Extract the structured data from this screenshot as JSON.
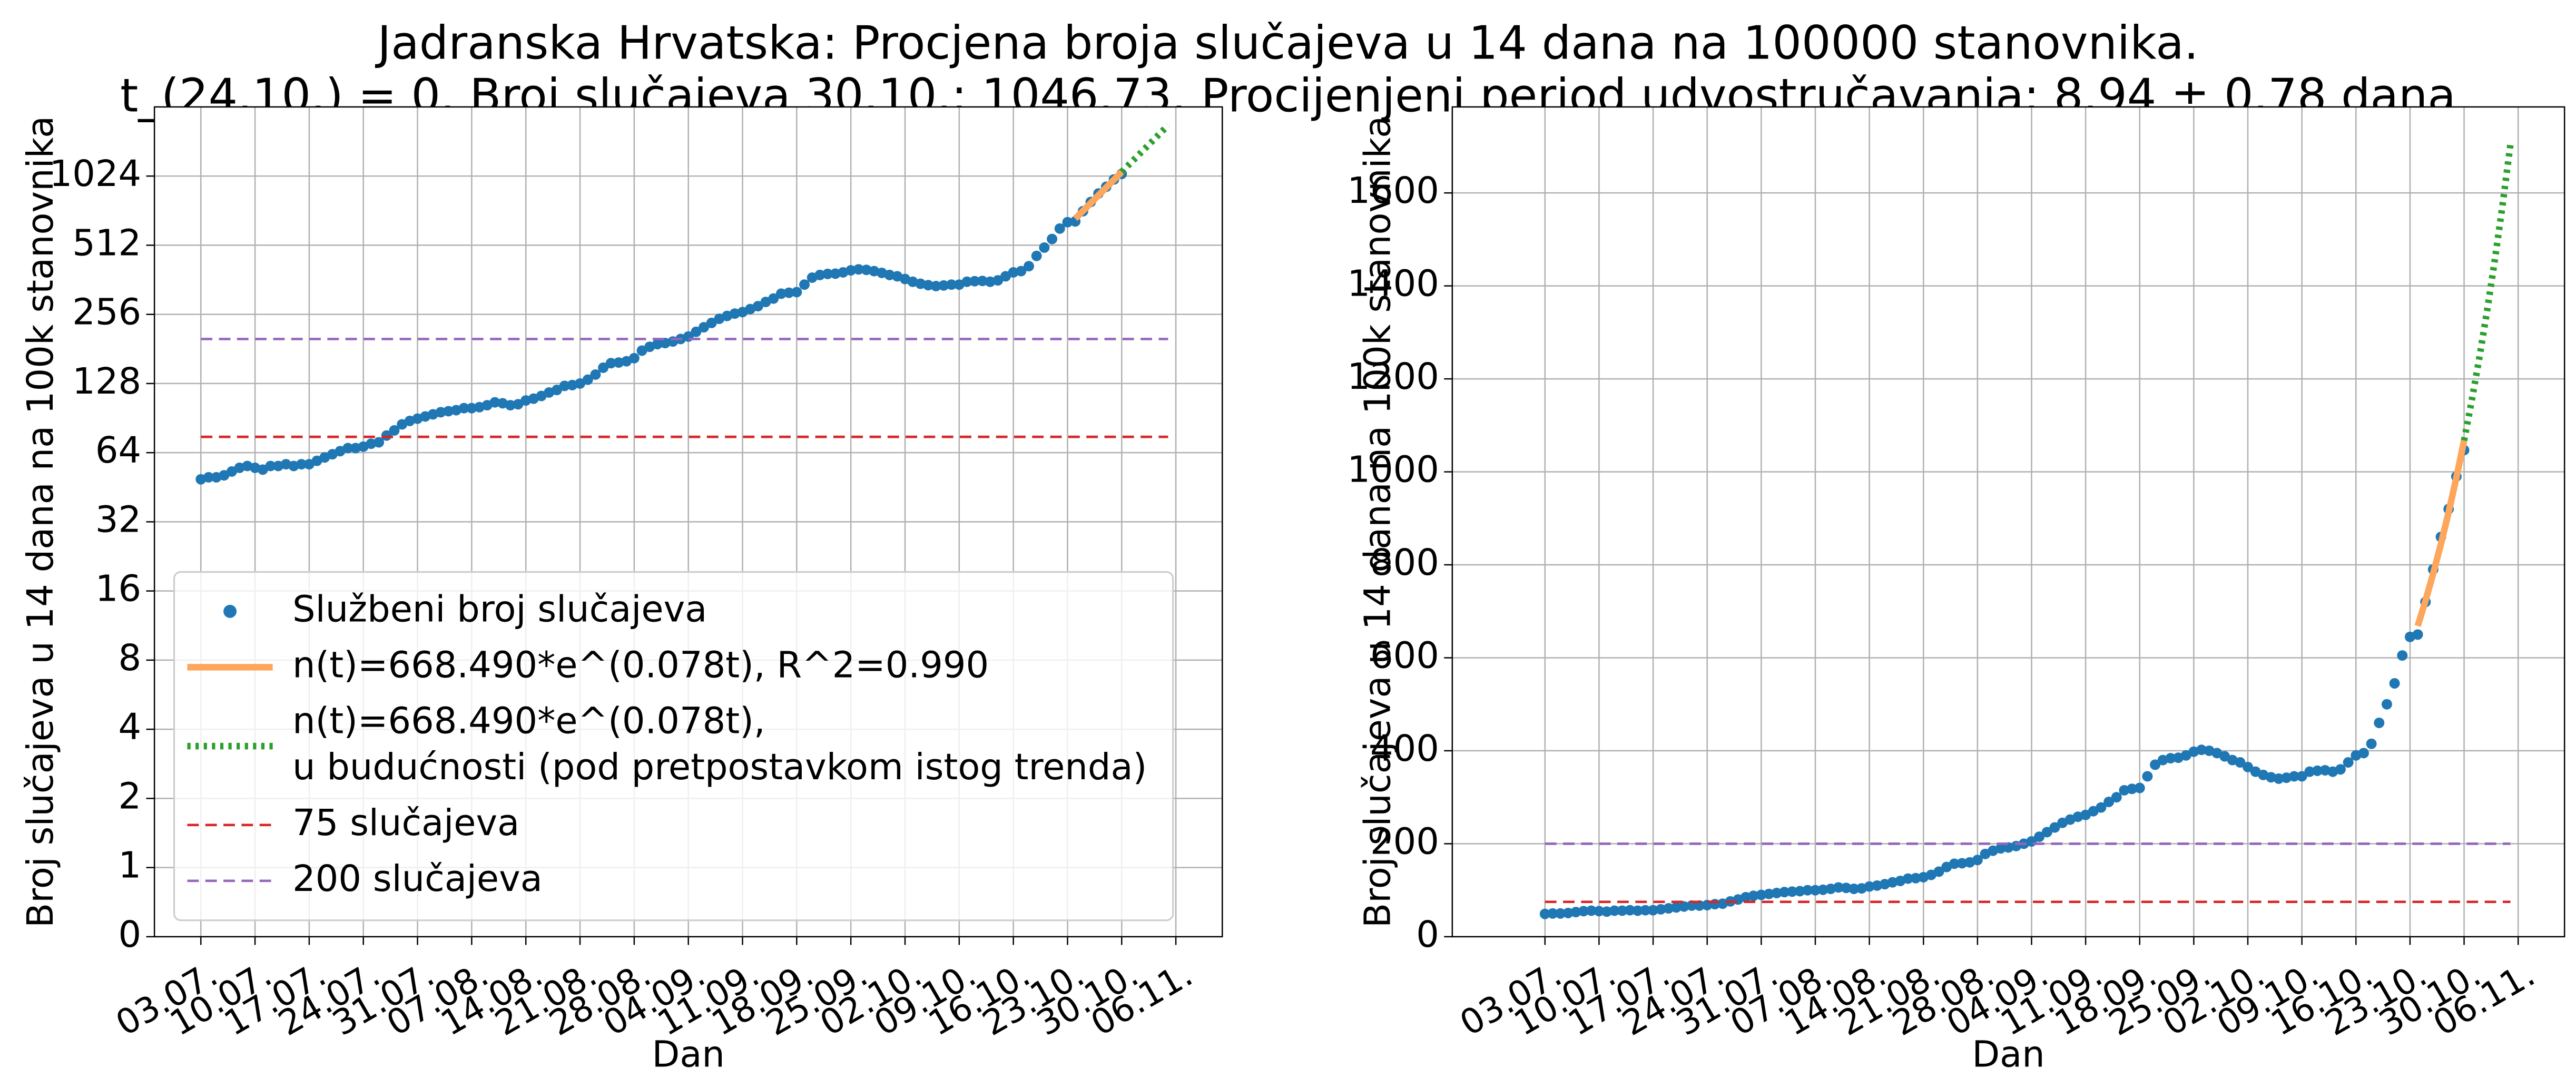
{
  "title": [
    "Jadranska Hrvatska: Procjena broja slučajeva u 14 dana na 100000 stanovnika.",
    "t_(24.10.) = 0. Broj slučajeva 30.10.: 1046.73. Procijenjeni period udvostručavanja: 8.94 ± 0.78 dana"
  ],
  "chart_data": [
    {
      "type": "scatter",
      "xlabel": "Dan",
      "ylabel": "Broj slučajeva u 14 dana na 100k stanovnika",
      "yscale": "symlog",
      "base": 2,
      "linthresh": 1,
      "ylim": [
        0,
        2048
      ],
      "yticks": [
        0,
        1,
        2,
        4,
        8,
        16,
        32,
        64,
        128,
        256,
        512,
        1024
      ],
      "xlim": [
        "27.06.",
        "12.11."
      ],
      "xticks": [
        "03.07.",
        "10.07.",
        "17.07.",
        "24.07.",
        "31.07.",
        "07.08.",
        "14.08.",
        "21.08.",
        "28.08.",
        "04.09.",
        "11.09.",
        "18.09.",
        "25.09.",
        "02.10.",
        "09.10.",
        "16.10.",
        "23.10.",
        "30.10.",
        "06.11."
      ],
      "grid": true,
      "legend": "lower left",
      "series": [
        {
          "name": [
            "Službeni broj slučajeva"
          ],
          "color": "#1f77b4",
          "marker": "o",
          "x": [
            "03.07.",
            "04.07.",
            "05.07.",
            "06.07.",
            "07.07.",
            "08.07.",
            "09.07.",
            "10.07.",
            "11.07.",
            "12.07.",
            "13.07.",
            "14.07.",
            "15.07.",
            "16.07.",
            "17.07.",
            "18.07.",
            "19.07.",
            "20.07.",
            "21.07.",
            "22.07.",
            "23.07.",
            "24.07.",
            "25.07.",
            "26.07.",
            "27.07.",
            "28.07.",
            "29.07.",
            "30.07.",
            "31.07.",
            "01.08.",
            "02.08.",
            "03.08.",
            "04.08.",
            "05.08.",
            "06.08.",
            "07.08.",
            "08.08.",
            "09.08.",
            "10.08.",
            "11.08.",
            "12.08.",
            "13.08.",
            "14.08.",
            "15.08.",
            "16.08.",
            "17.08.",
            "18.08.",
            "19.08.",
            "20.08.",
            "21.08.",
            "22.08.",
            "23.08.",
            "24.08.",
            "25.08.",
            "26.08.",
            "27.08.",
            "28.08.",
            "29.08.",
            "30.08.",
            "31.08.",
            "01.09.",
            "02.09.",
            "03.09.",
            "04.09.",
            "05.09.",
            "06.09.",
            "07.09.",
            "08.09.",
            "09.09.",
            "10.09.",
            "11.09.",
            "12.09.",
            "13.09.",
            "14.09.",
            "15.09.",
            "16.09.",
            "17.09.",
            "18.09.",
            "19.09.",
            "20.09.",
            "21.09.",
            "22.09.",
            "23.09.",
            "24.09.",
            "25.09.",
            "26.09.",
            "27.09.",
            "28.09.",
            "29.09.",
            "30.09.",
            "01.10.",
            "02.10.",
            "03.10.",
            "04.10.",
            "05.10.",
            "06.10.",
            "07.10.",
            "08.10.",
            "09.10.",
            "10.10.",
            "11.10.",
            "12.10.",
            "13.10.",
            "14.10.",
            "15.10.",
            "16.10.",
            "17.10.",
            "18.10.",
            "19.10.",
            "20.10.",
            "21.10.",
            "22.10.",
            "23.10.",
            "24.10.",
            "25.10.",
            "26.10.",
            "27.10.",
            "28.10.",
            "29.10.",
            "30.10."
          ],
          "values": [
            49,
            50,
            50,
            51,
            53,
            55,
            56,
            55,
            54,
            56,
            56,
            57,
            56,
            57,
            57,
            59,
            61,
            63,
            65,
            67,
            67,
            68,
            70,
            71,
            76,
            80,
            85,
            88,
            90,
            92,
            94,
            96,
            97,
            98,
            100,
            100,
            101,
            103,
            106,
            105,
            103,
            104,
            108,
            110,
            113,
            117,
            120,
            125,
            126,
            128,
            133,
            140,
            150,
            157,
            158,
            160,
            165,
            178,
            185,
            190,
            192,
            195,
            200,
            205,
            215,
            225,
            235,
            245,
            252,
            258,
            262,
            270,
            278,
            290,
            300,
            315,
            318,
            320,
            345,
            370,
            380,
            384,
            385,
            390,
            398,
            402,
            400,
            395,
            388,
            380,
            375,
            365,
            355,
            348,
            343,
            340,
            342,
            345,
            345,
            355,
            357,
            358,
            355,
            360,
            375,
            390,
            395,
            415,
            460,
            500,
            545,
            605,
            645,
            650,
            720,
            790,
            860,
            920,
            990,
            1046.73
          ]
        },
        {
          "name": [
            "n(t)=668.490*e^(0.078t), R^2=0.990"
          ],
          "color": "#fda65c",
          "linestyle": "solid",
          "linewidth": 4,
          "x": [
            "24.10.",
            "25.10.",
            "26.10.",
            "27.10.",
            "28.10.",
            "29.10.",
            "30.10."
          ],
          "values": [
            668.49,
            722.7,
            781.3,
            844.7,
            913.2,
            987.3,
            1067.4
          ]
        },
        {
          "name": [
            "n(t)=668.490*e^(0.078t),",
            "u budućnosti (pod pretpostavkom istog trenda)"
          ],
          "color": "#2ca02c",
          "linestyle": "dotted",
          "linewidth": 4,
          "x": [
            "30.10.",
            "31.10.",
            "01.11.",
            "02.11.",
            "03.11.",
            "04.11.",
            "05.11."
          ],
          "values": [
            1067.4,
            1154,
            1247.7,
            1348.9,
            1458.3,
            1576.6,
            1704.5
          ]
        },
        {
          "name": [
            "75 slučajeva"
          ],
          "color": "#d62728",
          "linestyle": "dashed",
          "linewidth": 1.5,
          "x": [
            "03.07.",
            "05.11."
          ],
          "values": [
            75,
            75
          ]
        },
        {
          "name": [
            "200 slučajeva"
          ],
          "color": "#9467bd",
          "linestyle": "dashed",
          "linewidth": 1.5,
          "x": [
            "03.07.",
            "05.11."
          ],
          "values": [
            200,
            200
          ]
        }
      ]
    },
    {
      "type": "scatter",
      "xlabel": "Dan",
      "ylabel": "Broj slučajeva u 14 dana na 100k stanovnika",
      "yscale": "linear",
      "ylim": [
        0,
        1785
      ],
      "yticks": [
        0,
        200,
        400,
        600,
        800,
        1000,
        1200,
        1400,
        1600
      ],
      "xlim": [
        "21.06.",
        "12.11."
      ],
      "xticks": [
        "03.07.",
        "10.07.",
        "17.07.",
        "24.07.",
        "31.07.",
        "07.08.",
        "14.08.",
        "21.08.",
        "28.08.",
        "04.09.",
        "11.09.",
        "18.09.",
        "25.09.",
        "02.10.",
        "09.10.",
        "16.10.",
        "23.10.",
        "30.10.",
        "06.11."
      ],
      "grid": true,
      "series": [
        {
          "color": "#1f77b4",
          "marker": "o",
          "x": [
            "03.07.",
            "04.07.",
            "05.07.",
            "06.07.",
            "07.07.",
            "08.07.",
            "09.07.",
            "10.07.",
            "11.07.",
            "12.07.",
            "13.07.",
            "14.07.",
            "15.07.",
            "16.07.",
            "17.07.",
            "18.07.",
            "19.07.",
            "20.07.",
            "21.07.",
            "22.07.",
            "23.07.",
            "24.07.",
            "25.07.",
            "26.07.",
            "27.07.",
            "28.07.",
            "29.07.",
            "30.07.",
            "31.07.",
            "01.08.",
            "02.08.",
            "03.08.",
            "04.08.",
            "05.08.",
            "06.08.",
            "07.08.",
            "08.08.",
            "09.08.",
            "10.08.",
            "11.08.",
            "12.08.",
            "13.08.",
            "14.08.",
            "15.08.",
            "16.08.",
            "17.08.",
            "18.08.",
            "19.08.",
            "20.08.",
            "21.08.",
            "22.08.",
            "23.08.",
            "24.08.",
            "25.08.",
            "26.08.",
            "27.08.",
            "28.08.",
            "29.08.",
            "30.08.",
            "31.08.",
            "01.09.",
            "02.09.",
            "03.09.",
            "04.09.",
            "05.09.",
            "06.09.",
            "07.09.",
            "08.09.",
            "09.09.",
            "10.09.",
            "11.09.",
            "12.09.",
            "13.09.",
            "14.09.",
            "15.09.",
            "16.09.",
            "17.09.",
            "18.09.",
            "19.09.",
            "20.09.",
            "21.09.",
            "22.09.",
            "23.09.",
            "24.09.",
            "25.09.",
            "26.09.",
            "27.09.",
            "28.09.",
            "29.09.",
            "30.09.",
            "01.10.",
            "02.10.",
            "03.10.",
            "04.10.",
            "05.10.",
            "06.10.",
            "07.10.",
            "08.10.",
            "09.10.",
            "10.10.",
            "11.10.",
            "12.10.",
            "13.10.",
            "14.10.",
            "15.10.",
            "16.10.",
            "17.10.",
            "18.10.",
            "19.10.",
            "20.10.",
            "21.10.",
            "22.10.",
            "23.10.",
            "24.10.",
            "25.10.",
            "26.10.",
            "27.10.",
            "28.10.",
            "29.10.",
            "30.10."
          ],
          "values": [
            49,
            50,
            50,
            51,
            53,
            55,
            56,
            55,
            54,
            56,
            56,
            57,
            56,
            57,
            57,
            59,
            61,
            63,
            65,
            67,
            67,
            68,
            70,
            71,
            76,
            80,
            85,
            88,
            90,
            92,
            94,
            96,
            97,
            98,
            100,
            100,
            101,
            103,
            106,
            105,
            103,
            104,
            108,
            110,
            113,
            117,
            120,
            125,
            126,
            128,
            133,
            140,
            150,
            157,
            158,
            160,
            165,
            178,
            185,
            190,
            192,
            195,
            200,
            205,
            215,
            225,
            235,
            245,
            252,
            258,
            262,
            270,
            278,
            290,
            300,
            315,
            318,
            320,
            345,
            370,
            380,
            384,
            385,
            390,
            398,
            402,
            400,
            395,
            388,
            380,
            375,
            365,
            355,
            348,
            343,
            340,
            342,
            345,
            345,
            355,
            357,
            358,
            355,
            360,
            375,
            390,
            395,
            415,
            460,
            500,
            545,
            605,
            645,
            650,
            720,
            790,
            860,
            920,
            990,
            1046.73
          ]
        },
        {
          "color": "#fda65c",
          "linestyle": "solid",
          "linewidth": 4,
          "x": [
            "24.10.",
            "25.10.",
            "26.10.",
            "27.10.",
            "28.10.",
            "29.10.",
            "30.10."
          ],
          "values": [
            668.49,
            722.7,
            781.3,
            844.7,
            913.2,
            987.3,
            1067.4
          ]
        },
        {
          "color": "#2ca02c",
          "linestyle": "dotted",
          "linewidth": 4,
          "x": [
            "30.10.",
            "31.10.",
            "01.11.",
            "02.11.",
            "03.11.",
            "04.11.",
            "05.11."
          ],
          "values": [
            1067.4,
            1154,
            1247.7,
            1348.9,
            1458.3,
            1576.6,
            1704.5
          ]
        },
        {
          "color": "#d62728",
          "linestyle": "dashed",
          "linewidth": 1.5,
          "x": [
            "03.07.",
            "05.11."
          ],
          "values": [
            75,
            75
          ]
        },
        {
          "color": "#9467bd",
          "linestyle": "dashed",
          "linewidth": 1.5,
          "x": [
            "03.07.",
            "05.11."
          ],
          "values": [
            200,
            200
          ]
        }
      ]
    }
  ]
}
